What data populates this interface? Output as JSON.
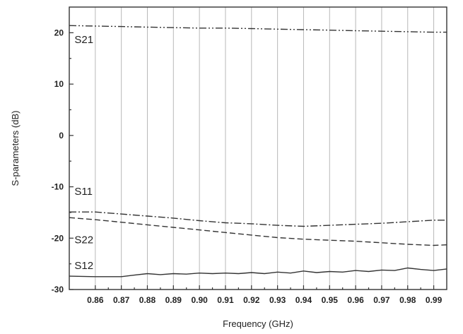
{
  "chart_data": {
    "type": "line",
    "title": "",
    "xlabel": "Frequency (GHz)",
    "ylabel": "S-parameters (dB)",
    "xlim": [
      0.85,
      0.995
    ],
    "ylim": [
      -30,
      25
    ],
    "grid": true,
    "x_ticks": [
      0.86,
      0.87,
      0.88,
      0.89,
      0.9,
      0.91,
      0.92,
      0.93,
      0.94,
      0.95,
      0.96,
      0.97,
      0.98,
      0.99
    ],
    "x_tick_labels": [
      "0.86",
      "0.87",
      "0.88",
      "0.89",
      "0.90",
      "0.91",
      "0.92",
      "0.93",
      "0.94",
      "0.95",
      "0.96",
      "0.97",
      "0.98",
      "0.99"
    ],
    "y_ticks": [
      -30,
      -20,
      -10,
      0,
      10,
      20
    ],
    "y_tick_labels": [
      "-30",
      "-20",
      "-10",
      "0",
      "10",
      "20"
    ],
    "series": [
      {
        "name": "S21",
        "style": "dash-dot-dot",
        "x": [
          0.85,
          0.86,
          0.87,
          0.88,
          0.89,
          0.9,
          0.91,
          0.92,
          0.93,
          0.94,
          0.95,
          0.96,
          0.97,
          0.98,
          0.99,
          0.995
        ],
        "y": [
          21.4,
          21.3,
          21.2,
          21.1,
          21.0,
          20.9,
          20.9,
          20.8,
          20.7,
          20.6,
          20.5,
          20.4,
          20.3,
          20.2,
          20.1,
          20.1
        ]
      },
      {
        "name": "S11",
        "style": "dash-dot",
        "x": [
          0.85,
          0.86,
          0.87,
          0.88,
          0.89,
          0.9,
          0.91,
          0.92,
          0.93,
          0.94,
          0.95,
          0.96,
          0.97,
          0.98,
          0.99,
          0.995
        ],
        "y": [
          -14.9,
          -14.9,
          -15.3,
          -15.7,
          -16.1,
          -16.6,
          -17.0,
          -17.2,
          -17.5,
          -17.7,
          -17.5,
          -17.3,
          -17.1,
          -16.8,
          -16.5,
          -16.5
        ]
      },
      {
        "name": "S22",
        "style": "dashed",
        "x": [
          0.85,
          0.86,
          0.87,
          0.88,
          0.89,
          0.9,
          0.91,
          0.92,
          0.93,
          0.94,
          0.95,
          0.96,
          0.97,
          0.98,
          0.99,
          0.995
        ],
        "y": [
          -16.0,
          -16.4,
          -16.9,
          -17.4,
          -17.9,
          -18.4,
          -18.9,
          -19.4,
          -19.9,
          -20.2,
          -20.4,
          -20.6,
          -20.9,
          -21.2,
          -21.4,
          -21.3
        ]
      },
      {
        "name": "S12",
        "style": "solid",
        "x": [
          0.85,
          0.86,
          0.87,
          0.875,
          0.88,
          0.885,
          0.89,
          0.895,
          0.9,
          0.905,
          0.91,
          0.915,
          0.92,
          0.925,
          0.93,
          0.935,
          0.94,
          0.945,
          0.95,
          0.955,
          0.96,
          0.965,
          0.97,
          0.975,
          0.98,
          0.985,
          0.99,
          0.995
        ],
        "y": [
          -27.4,
          -27.5,
          -27.5,
          -27.2,
          -26.9,
          -27.1,
          -26.9,
          -27.0,
          -26.8,
          -26.9,
          -26.8,
          -26.9,
          -26.7,
          -26.9,
          -26.6,
          -26.8,
          -26.4,
          -26.7,
          -26.5,
          -26.6,
          -26.3,
          -26.5,
          -26.2,
          -26.3,
          -25.8,
          -26.1,
          -26.3,
          -26.0
        ]
      }
    ],
    "series_labels": [
      {
        "text": "S21",
        "x": 0.852,
        "y": 18.0
      },
      {
        "text": "S11",
        "x": 0.852,
        "y": -11.6
      },
      {
        "text": "S22",
        "x": 0.852,
        "y": -21.0
      },
      {
        "text": "S12",
        "x": 0.852,
        "y": -26.0
      }
    ],
    "line_color": "#333333",
    "grid_color": "#b8b8b8"
  }
}
